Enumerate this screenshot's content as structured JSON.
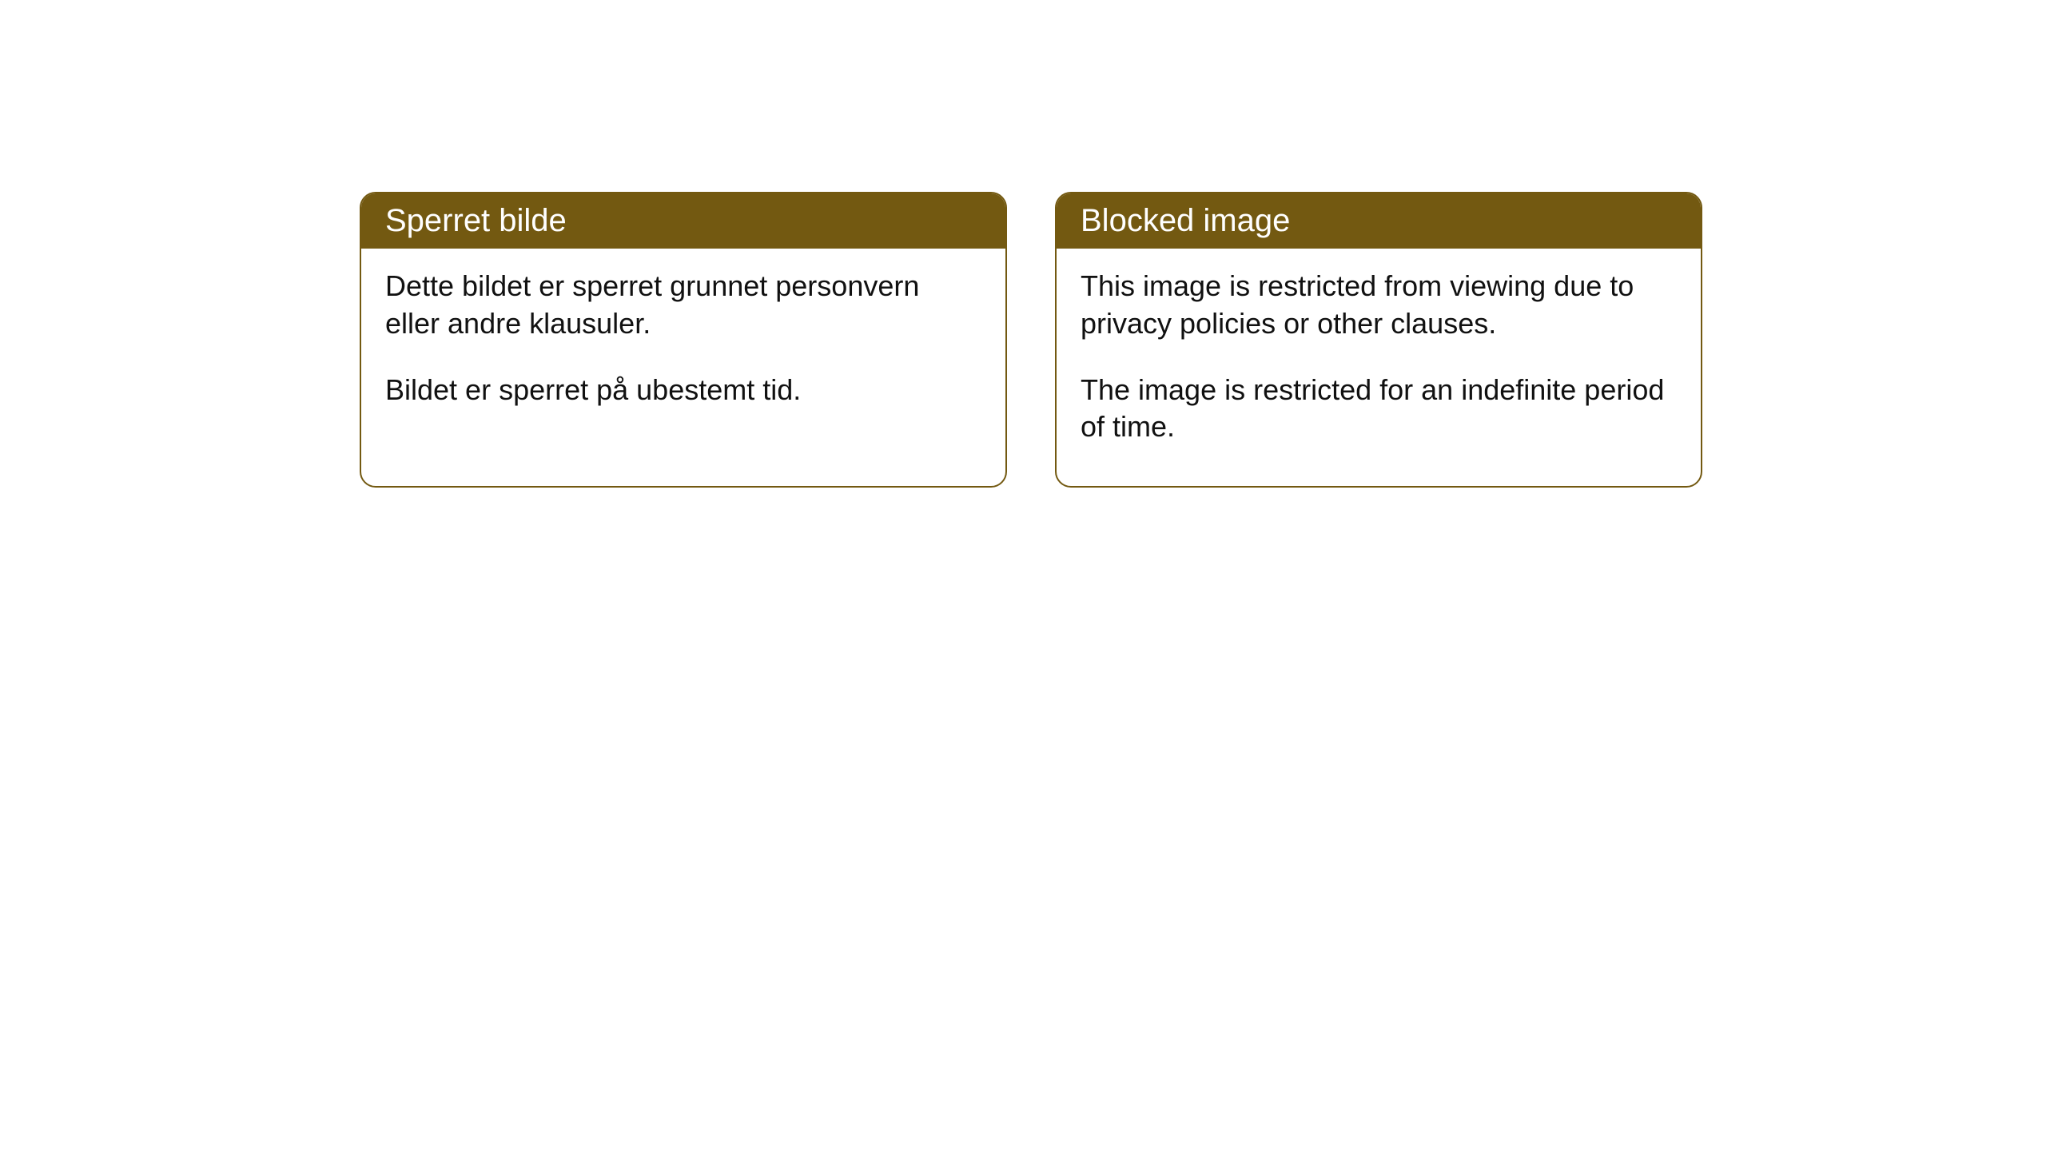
{
  "styling": {
    "header_bg_color": "#735911",
    "header_text_color": "#ffffff",
    "body_bg_color": "#ffffff",
    "body_text_color": "#111111",
    "border_color": "#735911",
    "border_width": 2,
    "border_radius": 20,
    "header_fontsize": 40,
    "body_fontsize": 36
  },
  "cards": [
    {
      "header": "Sperret bilde",
      "paragraphs": [
        "Dette bildet er sperret grunnet personvern eller andre klausuler.",
        "Bildet er sperret på ubestemt tid."
      ]
    },
    {
      "header": "Blocked image",
      "paragraphs": [
        "This image is restricted from viewing due to privacy policies or other clauses.",
        "The image is restricted for an indefinite period of time."
      ]
    }
  ]
}
